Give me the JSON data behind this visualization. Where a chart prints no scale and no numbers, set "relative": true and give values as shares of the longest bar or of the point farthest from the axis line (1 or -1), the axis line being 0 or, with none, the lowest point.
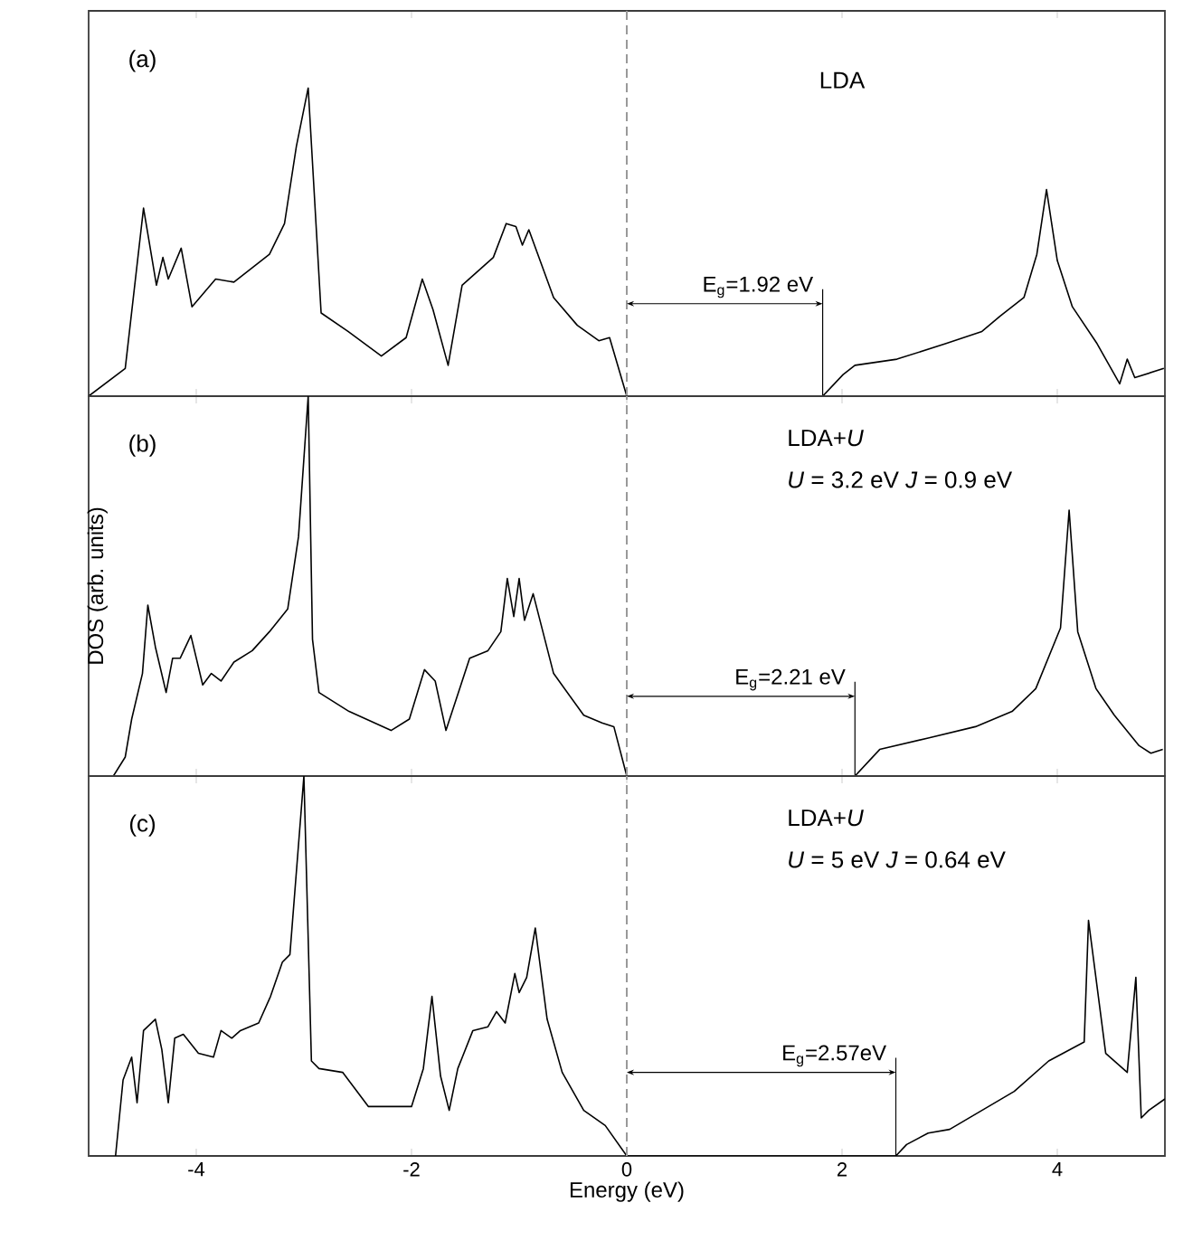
{
  "chart_data": [
    {
      "type": "line",
      "relative": true,
      "xlim": [
        -5,
        5
      ],
      "xticks": [
        -4,
        -2,
        0,
        2,
        4
      ],
      "tick_labels": false,
      "line_style": "solid",
      "grid": false,
      "x": [
        -5.0,
        -4.66,
        -4.49,
        -4.37,
        -4.31,
        -4.26,
        -4.14,
        -4.04,
        -3.82,
        -3.65,
        -3.32,
        -3.18,
        -3.07,
        -2.96,
        -2.84,
        -2.59,
        -2.28,
        -2.05,
        -1.9,
        -1.8,
        -1.66,
        -1.53,
        -1.24,
        -1.12,
        -1.03,
        -0.97,
        -0.91,
        -0.68,
        -0.46,
        -0.26,
        -0.16,
        0.0,
        1.82,
        2.01,
        2.12,
        2.51,
        2.96,
        3.3,
        3.47,
        3.69,
        3.81,
        3.9,
        4.0,
        4.14,
        4.37,
        4.58,
        4.65,
        4.72,
        4.99
      ],
      "series": [
        {
          "color": "#000000",
          "values": [
            0,
            0.09,
            0.61,
            0.36,
            0.45,
            0.38,
            0.48,
            0.29,
            0.38,
            0.37,
            0.46,
            0.56,
            0.81,
            1.0,
            0.27,
            0.21,
            0.13,
            0.19,
            0.38,
            0.28,
            0.1,
            0.36,
            0.45,
            0.56,
            0.55,
            0.49,
            0.54,
            0.32,
            0.23,
            0.18,
            0.19,
            0,
            0,
            0.07,
            0.1,
            0.12,
            0.17,
            0.21,
            0.26,
            0.32,
            0.46,
            0.67,
            0.44,
            0.29,
            0.17,
            0.04,
            0.12,
            0.06,
            0.09
          ]
        }
      ],
      "ref_lines": [
        {
          "axis": "x",
          "value": 0,
          "color": "#999999",
          "line_style": "dashed"
        }
      ],
      "annotations": [
        "(a)",
        "LDA",
        {
          "text": "E$_{g}$=1.92 eV",
          "x": 1.82,
          "y": 0.3
        }
      ]
    },
    {
      "type": "line",
      "relative": true,
      "xlim": [
        -5,
        5
      ],
      "xticks": [
        -4,
        -2,
        0,
        2,
        4
      ],
      "tick_labels": false,
      "line_style": "solid",
      "grid": false,
      "ylabel": "DOS (arb. units)",
      "x": [
        -4.77,
        -4.66,
        -4.6,
        -4.5,
        -4.45,
        -4.38,
        -4.28,
        -4.22,
        -4.15,
        -4.05,
        -3.94,
        -3.86,
        -3.77,
        -3.65,
        -3.48,
        -3.32,
        -3.15,
        -3.05,
        -2.96,
        -2.92,
        -2.86,
        -2.58,
        -2.19,
        -2.02,
        -1.88,
        -1.78,
        -1.68,
        -1.46,
        -1.29,
        -1.17,
        -1.11,
        -1.05,
        -1.0,
        -0.95,
        -0.87,
        -0.68,
        -0.4,
        -0.23,
        -0.12,
        0.0,
        2.12,
        2.35,
        2.8,
        3.24,
        3.58,
        3.8,
        4.03,
        4.11,
        4.19,
        4.36,
        4.53,
        4.76,
        4.87,
        4.98
      ],
      "series": [
        {
          "color": "#000000",
          "values": [
            0,
            0.05,
            0.15,
            0.27,
            0.45,
            0.34,
            0.22,
            0.31,
            0.31,
            0.37,
            0.24,
            0.27,
            0.25,
            0.3,
            0.33,
            0.38,
            0.44,
            0.63,
            1.0,
            0.36,
            0.22,
            0.17,
            0.12,
            0.15,
            0.28,
            0.25,
            0.12,
            0.31,
            0.33,
            0.38,
            0.52,
            0.42,
            0.52,
            0.41,
            0.48,
            0.27,
            0.16,
            0.14,
            0.13,
            0,
            0,
            0.07,
            0.1,
            0.13,
            0.17,
            0.23,
            0.39,
            0.7,
            0.38,
            0.23,
            0.16,
            0.08,
            0.06,
            0.07
          ]
        }
      ],
      "ref_lines": [
        {
          "axis": "x",
          "value": 0,
          "color": "#999999",
          "line_style": "dashed"
        }
      ],
      "annotations": [
        "(b)",
        "LDA+*U*",
        "*U* = 3.2 eV *J* = 0.9 eV",
        {
          "text": "E$_{g}$=2.21 eV",
          "x": 2.12,
          "y": 0.21
        }
      ]
    },
    {
      "type": "line",
      "relative": true,
      "xlim": [
        -5,
        5
      ],
      "xticks": [
        -4,
        -2,
        0,
        2,
        4
      ],
      "tick_labels": "x",
      "line_style": "solid",
      "grid": false,
      "xlabel": "Energy (eV)",
      "x": [
        -4.75,
        -4.68,
        -4.6,
        -4.55,
        -4.49,
        -4.38,
        -4.32,
        -4.26,
        -4.2,
        -4.12,
        -3.98,
        -3.84,
        -3.77,
        -3.67,
        -3.59,
        -3.42,
        -3.31,
        -3.2,
        -3.13,
        -3.0,
        -2.93,
        -2.86,
        -2.64,
        -2.4,
        -2.0,
        -1.89,
        -1.81,
        -1.73,
        -1.65,
        -1.57,
        -1.43,
        -1.29,
        -1.21,
        -1.13,
        -1.04,
        -1.0,
        -0.93,
        -0.85,
        -0.74,
        -0.6,
        -0.4,
        -0.2,
        0.0,
        2.5,
        2.6,
        2.8,
        3.0,
        3.3,
        3.6,
        3.92,
        4.25,
        4.29,
        4.45,
        4.65,
        4.73,
        4.78,
        4.85,
        5.0
      ],
      "series": [
        {
          "color": "#000000",
          "values": [
            0,
            0.2,
            0.26,
            0.14,
            0.33,
            0.36,
            0.28,
            0.14,
            0.31,
            0.32,
            0.27,
            0.26,
            0.33,
            0.31,
            0.33,
            0.35,
            0.42,
            0.51,
            0.53,
            1.0,
            0.25,
            0.23,
            0.22,
            0.13,
            0.13,
            0.23,
            0.42,
            0.21,
            0.12,
            0.23,
            0.33,
            0.34,
            0.38,
            0.35,
            0.48,
            0.43,
            0.47,
            0.6,
            0.36,
            0.22,
            0.12,
            0.08,
            0,
            0,
            0.03,
            0.06,
            0.07,
            0.12,
            0.17,
            0.25,
            0.3,
            0.62,
            0.27,
            0.22,
            0.47,
            0.1,
            0.12,
            0.15
          ]
        }
      ],
      "ref_lines": [
        {
          "axis": "x",
          "value": 0,
          "color": "#999999",
          "line_style": "dashed"
        }
      ],
      "annotations": [
        "(c)",
        "LDA+*U*",
        "*U* = 5 eV *J* = 0.64 eV",
        {
          "text": "E$_{g}$=2.57eV",
          "x": 2.5,
          "y": 0.22
        }
      ]
    }
  ]
}
